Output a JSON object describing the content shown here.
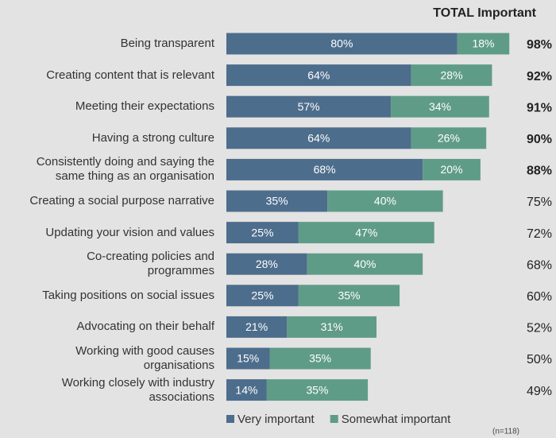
{
  "chart_data": {
    "type": "stacked-bar-horizontal",
    "categories": [
      "Being transparent",
      "Creating content that is relevant",
      "Meeting their expectations",
      "Having a strong culture",
      "Consistently doing and saying the\nsame thing as an organisation",
      "Creating a social purpose narrative",
      "Updating your vision and values",
      "Co-creating policies and\nprogrammes",
      "Taking positions on social issues",
      "Advocating on their behalf",
      "Working with good causes\norganisations",
      "Working closely with industry\nassociations"
    ],
    "series": [
      {
        "name": "Very important",
        "color": "#4d6d8c",
        "values": [
          80,
          64,
          57,
          64,
          68,
          35,
          25,
          28,
          25,
          21,
          15,
          14
        ],
        "value_labels": [
          "80%",
          "64%",
          "57%",
          "64%",
          "68%",
          "35%",
          "25%",
          "28%",
          "25%",
          "21%",
          "15%",
          "14%"
        ]
      },
      {
        "name": "Somewhat important",
        "color": "#5f9c88",
        "values": [
          18,
          28,
          34,
          26,
          20,
          40,
          47,
          40,
          35,
          31,
          35,
          35
        ],
        "value_labels": [
          "18%",
          "28%",
          "34%",
          "26%",
          "20%",
          "40%",
          "47%",
          "40%",
          "35%",
          "31%",
          "35%",
          "35%"
        ]
      }
    ],
    "totals": {
      "name": "TOTAL Important",
      "values": [
        98,
        92,
        91,
        90,
        88,
        75,
        72,
        68,
        60,
        52,
        50,
        49
      ],
      "value_labels": [
        "98%",
        "92%",
        "91%",
        "90%",
        "88%",
        "75%",
        "72%",
        "68%",
        "60%",
        "52%",
        "50%",
        "49%"
      ],
      "bold": [
        true,
        true,
        true,
        true,
        true,
        false,
        false,
        false,
        false,
        false,
        false,
        false
      ]
    },
    "xlim": [
      0,
      100
    ],
    "footnote": "(n=118)"
  }
}
